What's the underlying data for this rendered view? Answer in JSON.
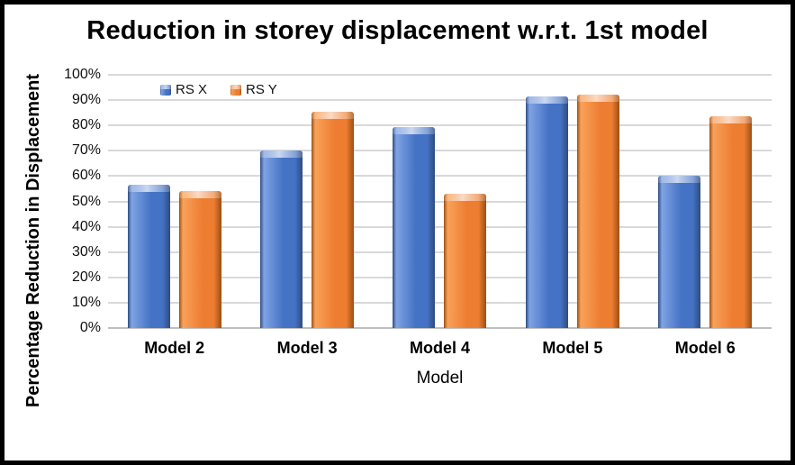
{
  "chart_data": {
    "type": "bar",
    "title": "Reduction in storey displacement w.r.t. 1st model",
    "xlabel": "Model",
    "ylabel": "Percentage Reduction in Displacement",
    "categories": [
      "Model 2",
      "Model 3",
      "Model 4",
      "Model 5",
      "Model 6"
    ],
    "series": [
      {
        "name": "RS X",
        "values": [
          56.5,
          70.0,
          79.3,
          91.5,
          60.3
        ],
        "color": "#4472C4",
        "color_light": "#7FA3E3",
        "color_dark": "#2E4C80"
      },
      {
        "name": "RS Y",
        "values": [
          54.0,
          85.3,
          53.0,
          92.0,
          83.5
        ],
        "color": "#ED7D31",
        "color_light": "#F9A159",
        "color_dark": "#9C4F13"
      }
    ],
    "ylim": [
      0,
      100
    ],
    "ytick_step": 10,
    "ytick_labels": [
      "0%",
      "10%",
      "20%",
      "30%",
      "40%",
      "50%",
      "60%",
      "70%",
      "80%",
      "90%",
      "100%"
    ],
    "grid": true,
    "legend_position": "top-left-inside",
    "style": {
      "gridline_color": "#D9D9D9",
      "axis_line_color": "#BFBFBF",
      "title_color": "#000000",
      "frame_border_color": "#000000",
      "background": "#FFFFFF"
    }
  }
}
